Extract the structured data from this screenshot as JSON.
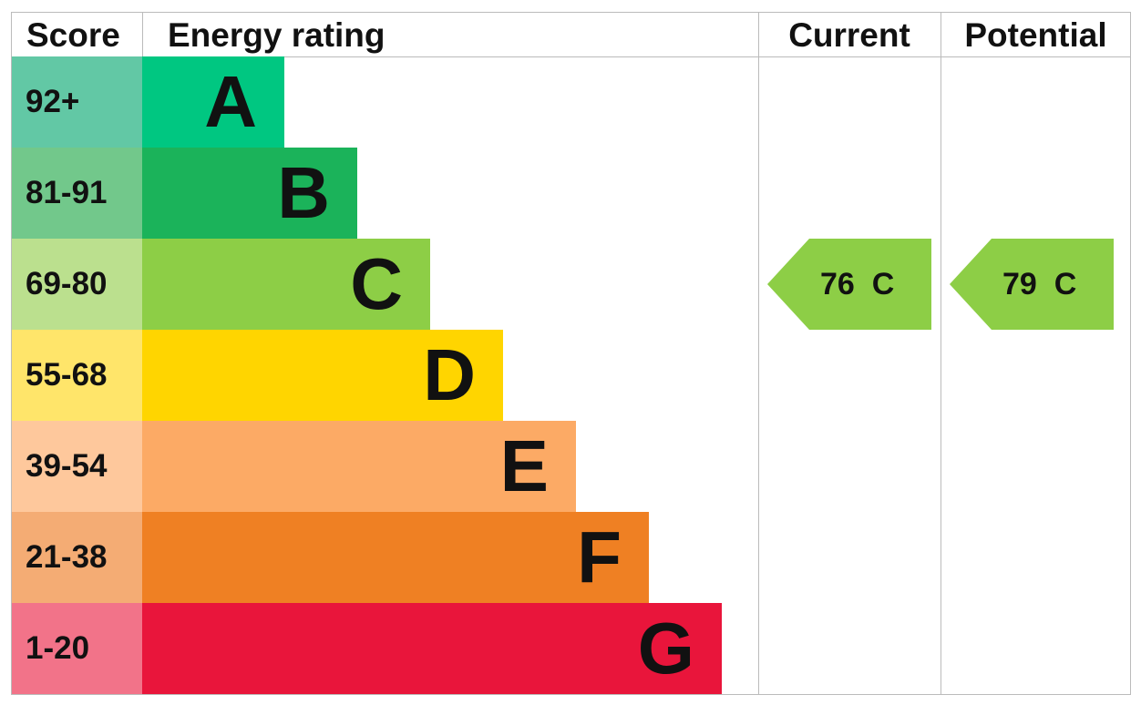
{
  "chart_data": {
    "type": "bar",
    "headers": {
      "score": "Score",
      "rating": "Energy rating",
      "current": "Current",
      "potential": "Potential"
    },
    "bands": [
      {
        "letter": "A",
        "range": "92+",
        "color": "#00c781",
        "score_color": "#62c8a5"
      },
      {
        "letter": "B",
        "range": "81-91",
        "color": "#1bb35a",
        "score_color": "#72c88b"
      },
      {
        "letter": "C",
        "range": "69-80",
        "color": "#8dce46",
        "score_color": "#bbe08e"
      },
      {
        "letter": "D",
        "range": "55-68",
        "color": "#ffd500",
        "score_color": "#ffe56a"
      },
      {
        "letter": "E",
        "range": "39-54",
        "color": "#fcaa65",
        "score_color": "#fec89c"
      },
      {
        "letter": "F",
        "range": "21-38",
        "color": "#ef8023",
        "score_color": "#f4ac74"
      },
      {
        "letter": "G",
        "range": "1-20",
        "color": "#e9153b",
        "score_color": "#f27389"
      }
    ],
    "current": {
      "value": 76,
      "band": "C",
      "label": "76  C",
      "color": "#8dce46"
    },
    "potential": {
      "value": 79,
      "band": "C",
      "label": "79  C",
      "color": "#8dce46"
    }
  }
}
